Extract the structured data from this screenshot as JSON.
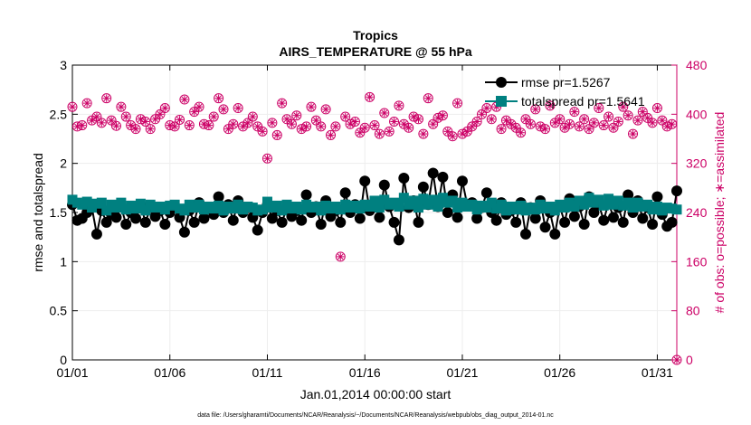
{
  "chart_data": {
    "type": "line",
    "title": "Tropics",
    "subtitle": "AIRS_TEMPERATURE @ 55 hPa",
    "xlabel": "Jan.01,2014 00:00:00 start",
    "ylabel_left": "rmse and totalspread",
    "ylabel_right": "# of obs: o=possible; ∗=assimilated",
    "footnote": "data file: /Users/gharamti/Documents/NCAR/Reanalysis/~/Documents/NCAR/Reanalysis/webpub/obs_diag_output_2014-01.nc",
    "xlim": [
      1,
      32
    ],
    "ylim_left": [
      0,
      3
    ],
    "ylim_right": [
      0,
      480
    ],
    "grid": true,
    "legend_position": "top-right",
    "x_ticks": [
      {
        "x": 1,
        "label": "01/01"
      },
      {
        "x": 6,
        "label": "01/06"
      },
      {
        "x": 11,
        "label": "01/11"
      },
      {
        "x": 16,
        "label": "01/16"
      },
      {
        "x": 21,
        "label": "01/21"
      },
      {
        "x": 26,
        "label": "01/26"
      },
      {
        "x": 31,
        "label": "01/31"
      }
    ],
    "y_ticks_left": [
      {
        "v": 0,
        "label": "0"
      },
      {
        "v": 0.5,
        "label": "0.5"
      },
      {
        "v": 1,
        "label": "1"
      },
      {
        "v": 1.5,
        "label": "1.5"
      },
      {
        "v": 2,
        "label": "2"
      },
      {
        "v": 2.5,
        "label": "2.5"
      },
      {
        "v": 3,
        "label": "3"
      }
    ],
    "y_ticks_right": [
      {
        "v": 0,
        "label": "0"
      },
      {
        "v": 80,
        "label": "80"
      },
      {
        "v": 160,
        "label": "160"
      },
      {
        "v": 240,
        "label": "240"
      },
      {
        "v": 320,
        "label": "320"
      },
      {
        "v": 400,
        "label": "400"
      },
      {
        "v": 480,
        "label": "480"
      }
    ],
    "colors": {
      "rmse": "#000000",
      "totalspread": "#008080",
      "obs": "#cc0066",
      "grid": "#ededed",
      "axis": "#000000"
    },
    "series": [
      {
        "name": "rmse pr=1.5267",
        "marker": "circle",
        "x": [
          1.0,
          1.25,
          1.5,
          1.75,
          2.0,
          2.25,
          2.5,
          2.75,
          3.0,
          3.25,
          3.5,
          3.75,
          4.0,
          4.25,
          4.5,
          4.75,
          5.0,
          5.25,
          5.5,
          5.75,
          6.0,
          6.25,
          6.5,
          6.75,
          7.0,
          7.25,
          7.5,
          7.75,
          8.0,
          8.25,
          8.5,
          8.75,
          9.0,
          9.25,
          9.5,
          9.75,
          10.0,
          10.25,
          10.5,
          10.75,
          11.0,
          11.25,
          11.5,
          11.75,
          12.0,
          12.25,
          12.5,
          12.75,
          13.0,
          13.25,
          13.5,
          13.75,
          14.0,
          14.25,
          14.5,
          14.75,
          15.0,
          15.25,
          15.5,
          15.75,
          16.0,
          16.25,
          16.5,
          16.75,
          17.0,
          17.25,
          17.5,
          17.75,
          18.0,
          18.25,
          18.5,
          18.75,
          19.0,
          19.25,
          19.5,
          19.75,
          20.0,
          20.25,
          20.5,
          20.75,
          21.0,
          21.25,
          21.5,
          21.75,
          22.0,
          22.25,
          22.5,
          22.75,
          23.0,
          23.25,
          23.5,
          23.75,
          24.0,
          24.25,
          24.5,
          24.75,
          25.0,
          25.25,
          25.5,
          25.75,
          26.0,
          26.25,
          26.5,
          26.75,
          27.0,
          27.25,
          27.5,
          27.75,
          28.0,
          28.25,
          28.5,
          28.75,
          29.0,
          29.25,
          29.5,
          29.75,
          30.0,
          30.25,
          30.5,
          30.75,
          31.0,
          31.25,
          31.5,
          31.75,
          32.0
        ],
        "values": [
          1.58,
          1.42,
          1.44,
          1.5,
          1.55,
          1.28,
          1.52,
          1.4,
          1.48,
          1.45,
          1.56,
          1.38,
          1.5,
          1.44,
          1.58,
          1.4,
          1.55,
          1.46,
          1.52,
          1.38,
          1.5,
          1.56,
          1.45,
          1.3,
          1.52,
          1.4,
          1.6,
          1.44,
          1.54,
          1.48,
          1.66,
          1.5,
          1.58,
          1.42,
          1.62,
          1.5,
          1.55,
          1.45,
          1.32,
          1.5,
          1.58,
          1.44,
          1.52,
          1.4,
          1.55,
          1.46,
          1.52,
          1.42,
          1.68,
          1.5,
          1.56,
          1.38,
          1.62,
          1.46,
          1.52,
          1.4,
          1.7,
          1.5,
          1.58,
          1.44,
          1.82,
          1.52,
          1.6,
          1.45,
          1.78,
          1.56,
          1.4,
          1.22,
          1.85,
          1.55,
          1.62,
          1.4,
          1.76,
          1.58,
          1.9,
          1.56,
          1.86,
          1.5,
          1.68,
          1.45,
          1.82,
          1.58,
          1.6,
          1.44,
          1.55,
          1.7,
          1.5,
          1.42,
          1.6,
          1.48,
          1.52,
          1.4,
          1.6,
          1.28,
          1.55,
          1.44,
          1.62,
          1.35,
          1.5,
          1.28,
          1.56,
          1.4,
          1.64,
          1.46,
          1.56,
          1.38,
          1.66,
          1.5,
          1.58,
          1.42,
          1.6,
          1.45,
          1.55,
          1.4,
          1.68,
          1.5,
          1.62,
          1.44,
          1.55,
          1.38,
          1.66,
          1.48,
          1.36,
          1.4,
          1.72
        ]
      },
      {
        "name": "totalspread pr=1.5641",
        "marker": "square",
        "x": [
          1.0,
          1.25,
          1.5,
          1.75,
          2.0,
          2.25,
          2.5,
          2.75,
          3.0,
          3.25,
          3.5,
          3.75,
          4.0,
          4.25,
          4.5,
          4.75,
          5.0,
          5.25,
          5.5,
          5.75,
          6.0,
          6.25,
          6.5,
          6.75,
          7.0,
          7.25,
          7.5,
          7.75,
          8.0,
          8.25,
          8.5,
          8.75,
          9.0,
          9.25,
          9.5,
          9.75,
          10.0,
          10.25,
          10.5,
          10.75,
          11.0,
          11.25,
          11.5,
          11.75,
          12.0,
          12.25,
          12.5,
          12.75,
          13.0,
          13.25,
          13.5,
          13.75,
          14.0,
          14.25,
          14.5,
          14.75,
          15.0,
          15.25,
          15.5,
          15.75,
          16.0,
          16.25,
          16.5,
          16.75,
          17.0,
          17.25,
          17.5,
          17.75,
          18.0,
          18.25,
          18.5,
          18.75,
          19.0,
          19.25,
          19.5,
          19.75,
          20.0,
          20.25,
          20.5,
          20.75,
          21.0,
          21.25,
          21.5,
          21.75,
          22.0,
          22.25,
          22.5,
          22.75,
          23.0,
          23.25,
          23.5,
          23.75,
          24.0,
          24.25,
          24.5,
          24.75,
          25.0,
          25.25,
          25.5,
          25.75,
          26.0,
          26.25,
          26.5,
          26.75,
          27.0,
          27.25,
          27.5,
          27.75,
          28.0,
          28.25,
          28.5,
          28.75,
          29.0,
          29.25,
          29.5,
          29.75,
          30.0,
          30.25,
          30.5,
          30.75,
          31.0,
          31.25,
          31.5,
          31.75,
          32.0
        ],
        "values": [
          1.63,
          1.6,
          1.58,
          1.61,
          1.55,
          1.59,
          1.6,
          1.52,
          1.58,
          1.55,
          1.6,
          1.53,
          1.57,
          1.54,
          1.59,
          1.52,
          1.58,
          1.55,
          1.56,
          1.53,
          1.57,
          1.58,
          1.54,
          1.52,
          1.58,
          1.55,
          1.58,
          1.53,
          1.56,
          1.54,
          1.57,
          1.52,
          1.56,
          1.54,
          1.58,
          1.53,
          1.56,
          1.55,
          1.52,
          1.53,
          1.61,
          1.55,
          1.57,
          1.52,
          1.58,
          1.54,
          1.56,
          1.53,
          1.58,
          1.55,
          1.56,
          1.52,
          1.57,
          1.54,
          1.56,
          1.53,
          1.58,
          1.55,
          1.57,
          1.54,
          1.58,
          1.56,
          1.62,
          1.55,
          1.63,
          1.58,
          1.6,
          1.56,
          1.65,
          1.58,
          1.62,
          1.55,
          1.64,
          1.58,
          1.63,
          1.56,
          1.65,
          1.6,
          1.62,
          1.55,
          1.6,
          1.56,
          1.58,
          1.53,
          1.57,
          1.55,
          1.6,
          1.54,
          1.58,
          1.52,
          1.56,
          1.53,
          1.57,
          1.52,
          1.55,
          1.53,
          1.58,
          1.54,
          1.56,
          1.52,
          1.58,
          1.55,
          1.6,
          1.56,
          1.62,
          1.58,
          1.65,
          1.6,
          1.63,
          1.57,
          1.64,
          1.58,
          1.62,
          1.57,
          1.6,
          1.55,
          1.6,
          1.56,
          1.58,
          1.53,
          1.56,
          1.52,
          1.55,
          1.54,
          1.53
        ]
      },
      {
        "name": "# of obs (possible and assimilated)",
        "marker": "circle-asterisk",
        "axis": "right",
        "x": [
          1.0,
          1.25,
          1.5,
          1.75,
          2.0,
          2.25,
          2.5,
          2.75,
          3.0,
          3.25,
          3.5,
          3.75,
          4.0,
          4.25,
          4.5,
          4.75,
          5.0,
          5.25,
          5.5,
          5.75,
          6.0,
          6.25,
          6.5,
          6.75,
          7.0,
          7.25,
          7.5,
          7.75,
          8.0,
          8.25,
          8.5,
          8.75,
          9.0,
          9.25,
          9.5,
          9.75,
          10.0,
          10.25,
          10.5,
          10.75,
          11.0,
          11.25,
          11.5,
          11.75,
          12.0,
          12.25,
          12.5,
          12.75,
          13.0,
          13.25,
          13.5,
          13.75,
          14.0,
          14.25,
          14.5,
          14.75,
          15.0,
          15.25,
          15.5,
          15.75,
          16.0,
          16.25,
          16.5,
          16.75,
          17.0,
          17.25,
          17.5,
          17.75,
          18.0,
          18.25,
          18.5,
          18.75,
          19.0,
          19.25,
          19.5,
          19.75,
          20.0,
          20.25,
          20.5,
          20.75,
          21.0,
          21.25,
          21.5,
          21.75,
          22.0,
          22.25,
          22.5,
          22.75,
          23.0,
          23.25,
          23.5,
          23.75,
          24.0,
          24.25,
          24.5,
          24.75,
          25.0,
          25.25,
          25.5,
          25.75,
          26.0,
          26.25,
          26.5,
          26.75,
          27.0,
          27.25,
          27.5,
          27.75,
          28.0,
          28.25,
          28.5,
          28.75,
          29.0,
          29.25,
          29.5,
          29.75,
          30.0,
          30.25,
          30.5,
          30.75,
          31.0,
          31.25,
          31.5,
          31.75,
          32.0
        ],
        "values": [
          412,
          380,
          382,
          418,
          390,
          396,
          386,
          426,
          390,
          381,
          412,
          396,
          382,
          376,
          392,
          388,
          376,
          392,
          400,
          410,
          382,
          380,
          391,
          424,
          382,
          404,
          412,
          384,
          382,
          396,
          426,
          408,
          376,
          384,
          410,
          380,
          386,
          396,
          380,
          372,
          328,
          386,
          366,
          418,
          392,
          384,
          398,
          376,
          380,
          412,
          390,
          380,
          408,
          366,
          380,
          168,
          396,
          384,
          388,
          370,
          378,
          428,
          382,
          368,
          402,
          372,
          388,
          414,
          384,
          378,
          396,
          392,
          368,
          426,
          384,
          394,
          398,
          372,
          364,
          418,
          368,
          372,
          380,
          388,
          400,
          410,
          392,
          412,
          376,
          390,
          384,
          378,
          370,
          392,
          384,
          408,
          380,
          376,
          414,
          386,
          392,
          378,
          384,
          404,
          380,
          392,
          376,
          386,
          410,
          382,
          396,
          378,
          388,
          412,
          398,
          368,
          390,
          404,
          394,
          386,
          410,
          390,
          380,
          384,
          0
        ]
      }
    ]
  }
}
